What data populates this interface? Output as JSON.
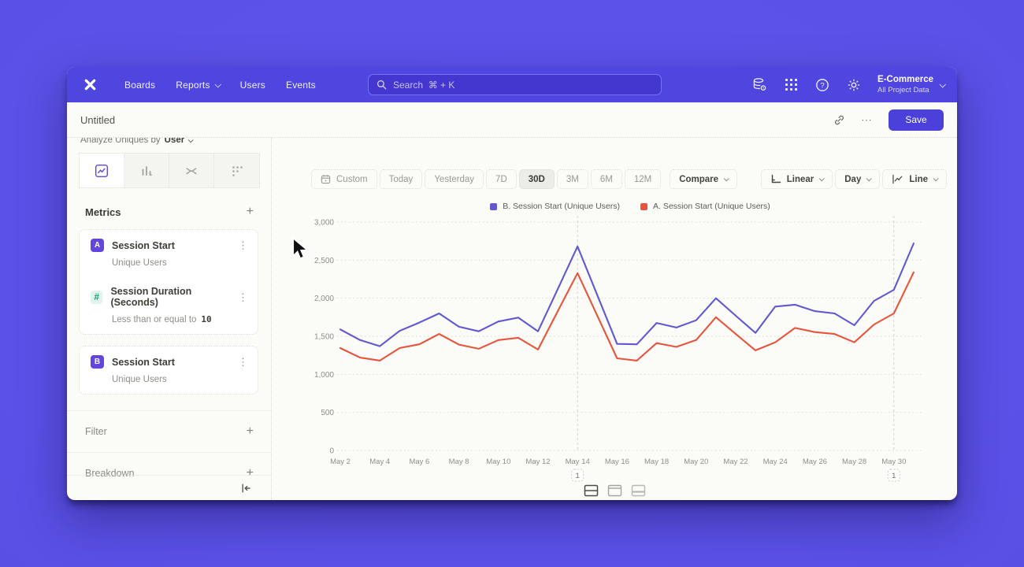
{
  "nav": {
    "items": [
      {
        "label": "Boards"
      },
      {
        "label": "Reports",
        "has_chevron": true
      },
      {
        "label": "Users"
      },
      {
        "label": "Events"
      }
    ],
    "search_placeholder": "Search  ⌘ + K",
    "project_name": "E-Commerce",
    "project_subtitle": "All Project Data"
  },
  "titlebar": {
    "title": "Untitled",
    "menu_ellipsis": "⋯",
    "save_label": "Save"
  },
  "sidebar": {
    "analyze_prefix": "Analyze Uniques by",
    "analyze_value": "User",
    "metrics_header": "Metrics",
    "add_symbol": "+",
    "kebab": "⋮",
    "metric_items": [
      {
        "badge": "A",
        "title": "Session Start",
        "subtitle": "Unique Users"
      },
      {
        "badge": "#",
        "title": "Session Duration (Seconds)",
        "subtitle": "Less than or equal to",
        "subtitle_value": "10"
      },
      {
        "badge": "B",
        "title": "Session Start",
        "subtitle": "Unique Users"
      }
    ],
    "filter_label": "Filter",
    "breakdown_label": "Breakdown"
  },
  "toolbar": {
    "date_ranges": [
      "Custom",
      "Today",
      "Yesterday",
      "7D",
      "30D",
      "3M",
      "6M",
      "12M"
    ],
    "selected_range": "30D",
    "compare_label": "Compare",
    "scale_label": "Linear",
    "granularity_label": "Day",
    "chart_type_label": "Line"
  },
  "chart_data": {
    "type": "line",
    "x": [
      "May 2",
      "May 3",
      "May 4",
      "May 5",
      "May 6",
      "May 7",
      "May 8",
      "May 9",
      "May 10",
      "May 11",
      "May 12",
      "May 13",
      "May 14",
      "May 15",
      "May 16",
      "May 17",
      "May 18",
      "May 19",
      "May 20",
      "May 21",
      "May 22",
      "May 23",
      "May 24",
      "May 25",
      "May 26",
      "May 27",
      "May 28",
      "May 29",
      "May 30",
      "May 31"
    ],
    "x_tick_step": 2,
    "ylim": [
      0,
      3000
    ],
    "yticks": [
      0,
      500,
      1000,
      1500,
      2000,
      2500,
      3000
    ],
    "grid": "horizontal-dotted",
    "legend_position": "top-center",
    "series": [
      {
        "name": "B. Session Start (Unique Users)",
        "color": "#6158d0",
        "values": [
          1590,
          1450,
          1370,
          1570,
          1680,
          1800,
          1625,
          1565,
          1695,
          1745,
          1565,
          2120,
          2680,
          2040,
          1400,
          1395,
          1675,
          1615,
          1710,
          2000,
          1770,
          1545,
          1890,
          1915,
          1830,
          1800,
          1645,
          1965,
          2110,
          2720
        ]
      },
      {
        "name": "A. Session Start (Unique Users)",
        "color": "#e7543c",
        "values": [
          1345,
          1220,
          1180,
          1345,
          1395,
          1530,
          1390,
          1335,
          1450,
          1480,
          1325,
          1830,
          2330,
          1770,
          1210,
          1180,
          1410,
          1360,
          1450,
          1750,
          1530,
          1315,
          1420,
          1610,
          1555,
          1530,
          1420,
          1655,
          1800,
          2340
        ]
      }
    ],
    "annotations": [
      {
        "x": "May 14",
        "label": "1"
      },
      {
        "x": "May 30",
        "label": "1"
      }
    ]
  }
}
